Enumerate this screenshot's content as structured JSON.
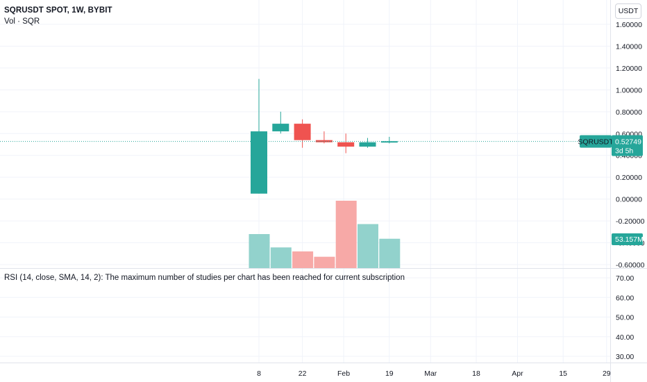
{
  "legend": {
    "title": "SQRUSDT SPOT, 1W, BYBIT",
    "volume": "Vol · SQR"
  },
  "currency_button": "USDT",
  "rsi_message": "RSI (14, close, SMA, 14, 2): The maximum number of studies per chart has been reached for current subscription",
  "price_tag": {
    "symbol": "SQRUSDT",
    "price": "0.52749",
    "countdown": "3d 5h"
  },
  "volume_tag": "53.157M",
  "colors": {
    "up": "#26a69a",
    "down": "#ef5350",
    "vol_up": "#92d2cc",
    "vol_down": "#f7a9a7",
    "grid": "#f0f3fa",
    "divider": "#e0e3eb"
  },
  "chart_data": [
    {
      "type": "candlestick",
      "symbol": "SQRUSDT",
      "interval": "1W",
      "exchange": "BYBIT",
      "y_ticks": [
        "1.60000",
        "1.40000",
        "1.20000",
        "1.00000",
        "0.80000",
        "0.60000",
        "0.40000",
        "0.20000",
        "0.00000",
        "-0.20000",
        "-0.40000",
        "-0.60000"
      ],
      "ylim": [
        -0.6,
        1.6
      ],
      "x_ticks": [
        {
          "label": "8",
          "week": 0
        },
        {
          "label": "22",
          "week": 2
        },
        {
          "label": "Feb",
          "week": 3.9
        },
        {
          "label": "19",
          "week": 6
        },
        {
          "label": "Mar",
          "week": 7.9
        },
        {
          "label": "18",
          "week": 10
        },
        {
          "label": "Apr",
          "week": 11.9
        },
        {
          "label": "15",
          "week": 14
        },
        {
          "label": "29",
          "week": 16
        }
      ],
      "candles": [
        {
          "week": 0,
          "open": 0.05,
          "high": 1.1,
          "low": 0.05,
          "close": 0.62
        },
        {
          "week": 1,
          "open": 0.62,
          "high": 0.8,
          "low": 0.6,
          "close": 0.69
        },
        {
          "week": 2,
          "open": 0.69,
          "high": 0.73,
          "low": 0.47,
          "close": 0.54
        },
        {
          "week": 3,
          "open": 0.54,
          "high": 0.62,
          "low": 0.51,
          "close": 0.52
        },
        {
          "week": 4,
          "open": 0.52,
          "high": 0.6,
          "low": 0.42,
          "close": 0.48
        },
        {
          "week": 5,
          "open": 0.48,
          "high": 0.56,
          "low": 0.47,
          "close": 0.52
        },
        {
          "week": 6,
          "open": 0.52,
          "high": 0.57,
          "low": 0.51,
          "close": 0.53
        }
      ],
      "last_price": 0.52749
    },
    {
      "type": "bar",
      "series_label": "Vol · SQR",
      "weeks": [
        0,
        1,
        2,
        3,
        4,
        5,
        6
      ],
      "values": [
        25.5,
        15.5,
        12.5,
        8.5,
        50.5,
        33.0,
        22.0
      ],
      "direction": [
        "up",
        "up",
        "down",
        "down",
        "down",
        "up",
        "up"
      ],
      "last_value_label": "53.157M"
    },
    {
      "type": "line",
      "series_label": "RSI (14, close, SMA, 14, 2)",
      "y_ticks": [
        "70.00",
        "60.00",
        "50.00",
        "40.00",
        "30.00"
      ],
      "ylim": [
        30,
        70
      ],
      "values": []
    }
  ]
}
